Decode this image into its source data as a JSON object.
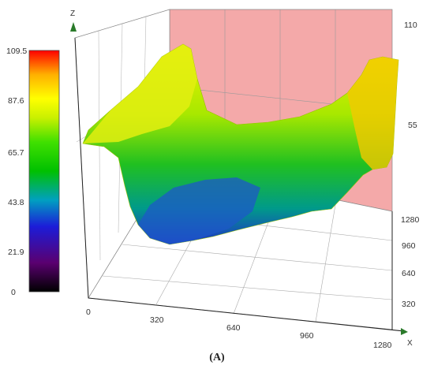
{
  "caption": "(A)",
  "colors": {
    "wall": "#f4a9a9",
    "grid": "#b0b0b0",
    "colormap": [
      "#000000",
      "#5a0070",
      "#1c1cd8",
      "#00a0c0",
      "#00c000",
      "#40e000",
      "#c8f000",
      "#ffff00",
      "#ffb000",
      "#ff0000"
    ]
  },
  "chart_data": {
    "type": "surface",
    "title": "",
    "axes": {
      "x": {
        "label": "X",
        "ticks": [
          "0",
          "320",
          "640",
          "960",
          "1280"
        ],
        "range": [
          0,
          1280
        ]
      },
      "y": {
        "label": "",
        "ticks": [
          "320",
          "640",
          "960",
          "1280"
        ],
        "range": [
          0,
          1280
        ]
      },
      "z": {
        "label": "Z",
        "ticks": [
          "55",
          "110"
        ],
        "range": [
          0,
          110
        ]
      }
    },
    "colorbar": {
      "ticks": [
        "0",
        "21.9",
        "43.8",
        "65.7",
        "87.6",
        "109.5"
      ],
      "range": [
        0,
        109.5
      ]
    },
    "surface_profile": {
      "x": [
        0,
        100,
        200,
        320,
        480,
        640,
        800,
        960,
        1100,
        1180,
        1280
      ],
      "z": [
        62,
        78,
        85,
        65,
        35,
        18,
        22,
        38,
        56,
        74,
        88
      ]
    }
  }
}
